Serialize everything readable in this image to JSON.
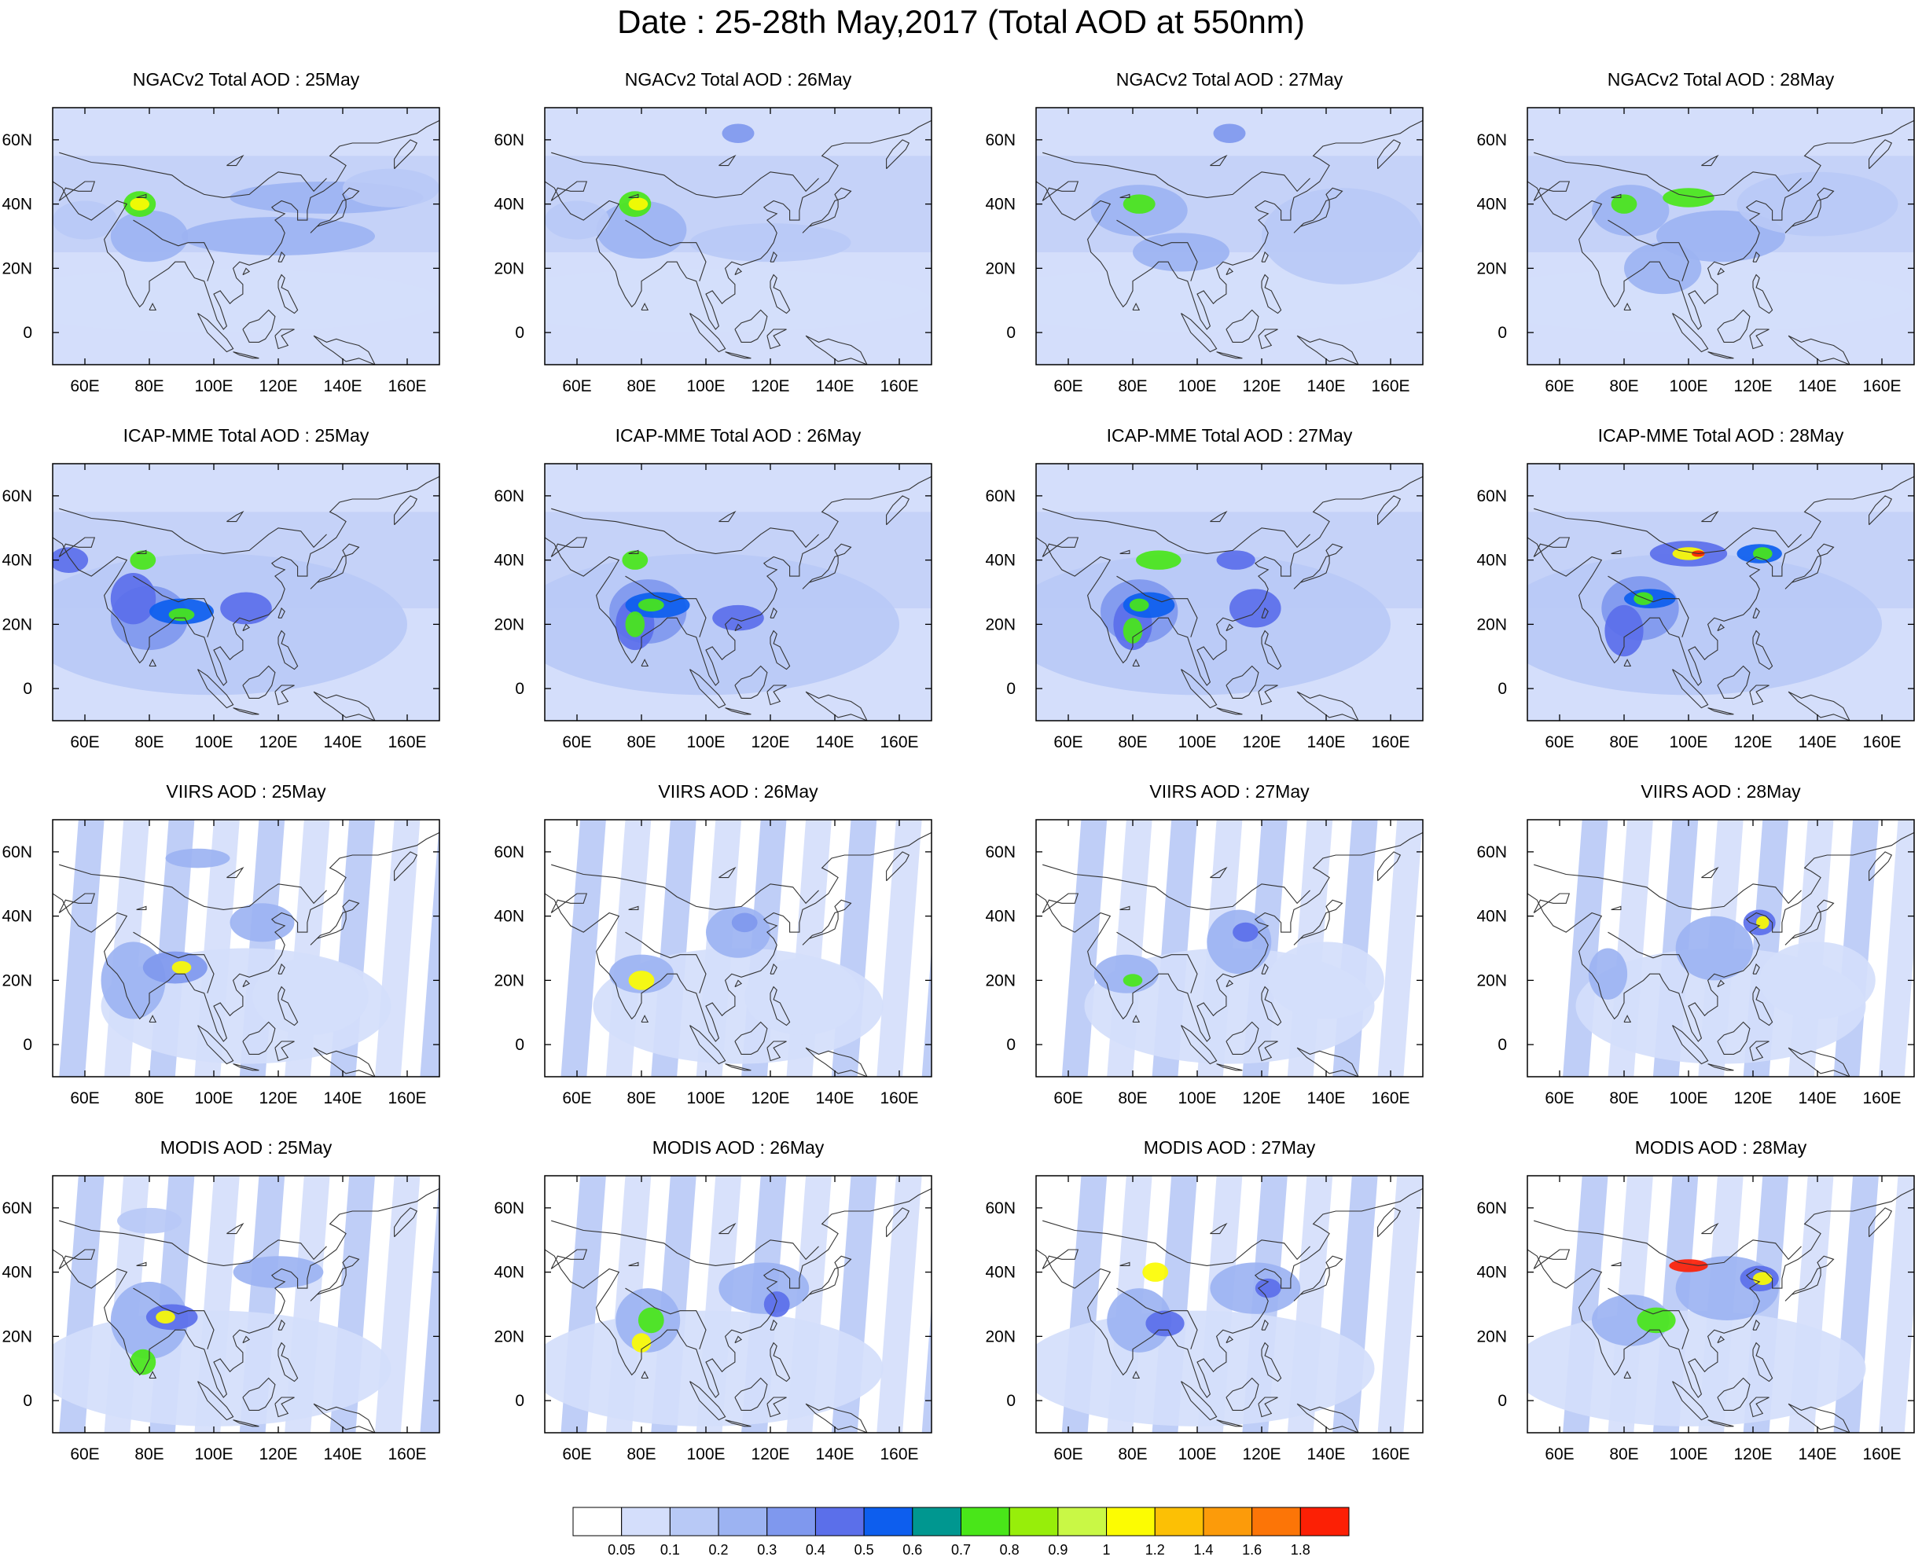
{
  "title": "Date : 25-28th May,2017 (Total AOD at 550nm)",
  "rows": [
    {
      "product": "NGACv2",
      "panels": [
        {
          "title": "NGACv2 Total AOD : 25May"
        },
        {
          "title": "NGACv2 Total AOD : 26May"
        },
        {
          "title": "NGACv2 Total AOD : 27May"
        },
        {
          "title": "NGACv2 Total AOD : 28May"
        }
      ]
    },
    {
      "product": "ICAP-MME",
      "panels": [
        {
          "title": "ICAP-MME Total AOD : 25May"
        },
        {
          "title": "ICAP-MME Total AOD : 26May"
        },
        {
          "title": "ICAP-MME Total AOD : 27May"
        },
        {
          "title": "ICAP-MME Total AOD : 28May"
        }
      ]
    },
    {
      "product": "VIIRS",
      "panels": [
        {
          "title": "VIIRS AOD : 25May"
        },
        {
          "title": "VIIRS AOD : 26May"
        },
        {
          "title": "VIIRS AOD : 27May"
        },
        {
          "title": "VIIRS AOD : 28May"
        }
      ]
    },
    {
      "product": "MODIS",
      "panels": [
        {
          "title": "MODIS AOD : 25May"
        },
        {
          "title": "MODIS AOD : 26May"
        },
        {
          "title": "MODIS AOD : 27May"
        },
        {
          "title": "MODIS AOD : 28May"
        }
      ]
    }
  ],
  "map": {
    "lon_range": [
      50,
      170
    ],
    "lat_range": [
      -10,
      70
    ],
    "x_ticks": [
      "60E",
      "80E",
      "100E",
      "120E",
      "140E",
      "160E"
    ],
    "x_tick_values": [
      60,
      80,
      100,
      120,
      140,
      160
    ],
    "y_ticks": [
      "60N",
      "40N",
      "20N",
      "0"
    ],
    "y_tick_values": [
      60,
      40,
      20,
      0
    ]
  },
  "colorbar": {
    "labels": [
      "0.05",
      "0.1",
      "0.2",
      "0.3",
      "0.4",
      "0.5",
      "0.6",
      "0.7",
      "0.8",
      "0.9",
      "1",
      "1.2",
      "1.4",
      "1.6",
      "1.8"
    ],
    "colors": [
      "#ffffff",
      "#d4defb",
      "#b8c9f6",
      "#9cb3f2",
      "#7f98ee",
      "#5b6fea",
      "#0d5eee",
      "#009790",
      "#49e619",
      "#97ee0a",
      "#c9f845",
      "#fcfc02",
      "#fcc005",
      "#fc9b0a",
      "#fc7507",
      "#fc2005"
    ]
  }
}
